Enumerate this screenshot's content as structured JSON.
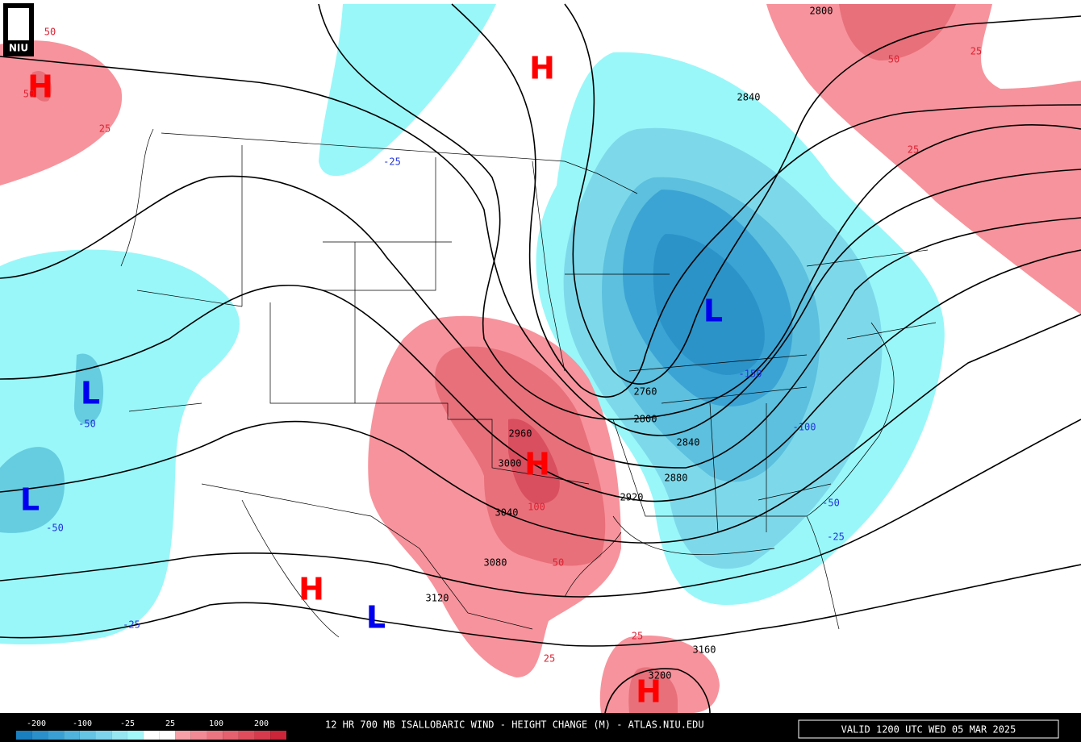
{
  "logo": "NIU",
  "footer": {
    "title": "12 HR 700 MB ISALLOBARIC WIND - HEIGHT CHANGE (M) - ATLAS.NIU.EDU",
    "valid": "VALID 1200 UTC WED 05 MAR 2025"
  },
  "legend": {
    "labels": [
      -200,
      -100,
      -25,
      25,
      100,
      200
    ],
    "colors": [
      "#1a7fbf",
      "#2b8fca",
      "#3aa0d4",
      "#4fb3dd",
      "#65c3e4",
      "#7dd3ec",
      "#96e6f2",
      "#a4f7f9",
      "#ffffff",
      "#ffffff",
      "#f7a0a8",
      "#f28a95",
      "#ec7582",
      "#e6616f",
      "#df4d5d",
      "#d63a4c",
      "#cc2438"
    ]
  },
  "centers": [
    "H",
    "H",
    "L",
    "L",
    "L",
    "H",
    "H",
    "L",
    "H"
  ],
  "height_labels": [
    2800,
    2840,
    2760,
    2800,
    2840,
    2880,
    2920,
    2960,
    3000,
    3040,
    3080,
    3120,
    3160,
    3200
  ],
  "change_labels": [
    50,
    50,
    25,
    50,
    25,
    25,
    100,
    50,
    25,
    25,
    -25,
    -50,
    -50,
    -25,
    -150,
    -100,
    -50,
    -25
  ]
}
